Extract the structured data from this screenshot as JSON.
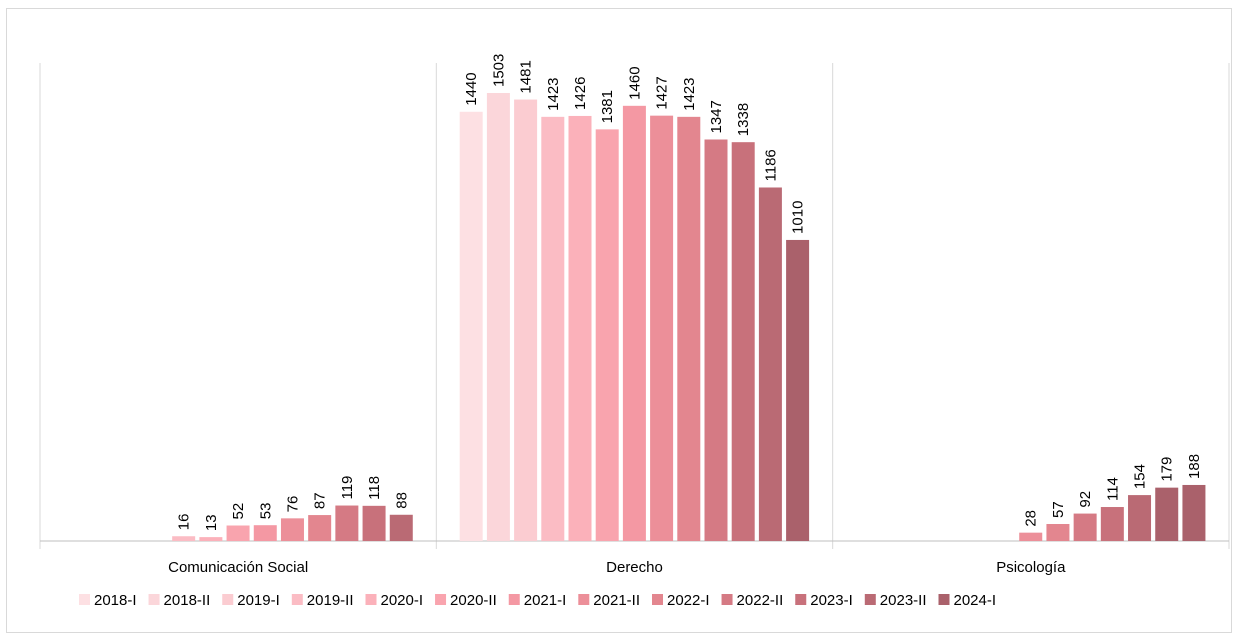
{
  "chart_data": {
    "type": "bar",
    "title": "",
    "xlabel": "",
    "ylabel": "",
    "ylim": [
      0,
      1550
    ],
    "grid": false,
    "legend_position": "bottom",
    "categories": [
      "Comunicación Social",
      "Derecho",
      "Psicología"
    ],
    "series": [
      {
        "name": "2018-I",
        "color": "#fde0e3",
        "values": [
          null,
          1440,
          null
        ]
      },
      {
        "name": "2018-II",
        "color": "#fbd6da",
        "values": [
          null,
          1503,
          null
        ]
      },
      {
        "name": "2019-I",
        "color": "#fbccd1",
        "values": [
          null,
          1481,
          null
        ]
      },
      {
        "name": "2019-II",
        "color": "#fbbcc4",
        "values": [
          16,
          1423,
          null
        ]
      },
      {
        "name": "2020-I",
        "color": "#fbb1ba",
        "values": [
          13,
          1426,
          null
        ]
      },
      {
        "name": "2020-II",
        "color": "#f9a4ae",
        "values": [
          52,
          1381,
          null
        ]
      },
      {
        "name": "2021-I",
        "color": "#f498a3",
        "values": [
          53,
          1460,
          null
        ]
      },
      {
        "name": "2021-II",
        "color": "#ec8f99",
        "values": [
          76,
          1427,
          28
        ]
      },
      {
        "name": "2022-I",
        "color": "#e3868f",
        "values": [
          87,
          1423,
          57
        ]
      },
      {
        "name": "2022-II",
        "color": "#d57a84",
        "values": [
          119,
          1347,
          92
        ]
      },
      {
        "name": "2023-I",
        "color": "#c8717b",
        "values": [
          118,
          1338,
          114
        ]
      },
      {
        "name": "2023-II",
        "color": "#ba6a74",
        "values": [
          88,
          1186,
          154
        ]
      },
      {
        "name": "2024-I",
        "color": "#aa616b",
        "values": [
          null,
          1010,
          179
        ]
      }
    ],
    "extra_psicologia_last": 188
  }
}
